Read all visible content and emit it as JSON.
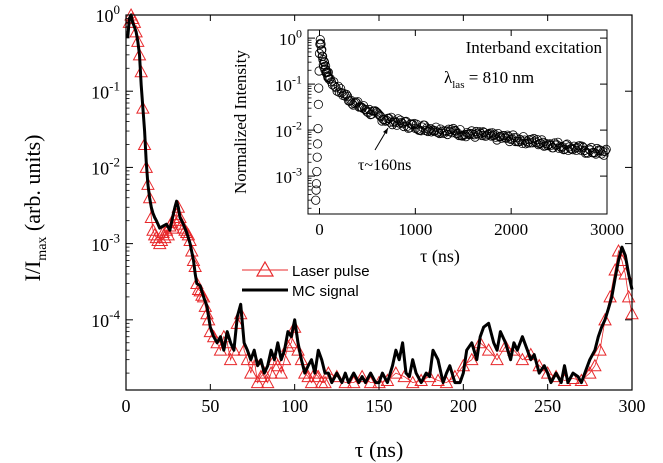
{
  "chart_data": [
    {
      "id": "main",
      "type": "line",
      "xlabel": "τ (ns)",
      "ylabel_main": "I/I",
      "ylabel_sub": "max",
      "ylabel_tail": " (arb. units)",
      "xlim": [
        0,
        300
      ],
      "ylim": [
        1.2e-05,
        1
      ],
      "y_scale": "log",
      "x_ticks": [
        0,
        50,
        100,
        150,
        200,
        250,
        300
      ],
      "x_tick_labels": [
        "0",
        "50",
        "100",
        "150",
        "200",
        "250",
        "300"
      ],
      "y_ticks": [
        1,
        0.1,
        0.01,
        0.001,
        0.0001
      ],
      "y_tick_labels": [
        {
          "base": "10",
          "exp": "0"
        },
        {
          "base": "10",
          "exp": "-1"
        },
        {
          "base": "10",
          "exp": "-2"
        },
        {
          "base": "10",
          "exp": "-3"
        },
        {
          "base": "10",
          "exp": "-4"
        }
      ],
      "legend_position": "center-left",
      "series": [
        {
          "name": "Laser pulse",
          "color": "#e8282b",
          "marker": "triangle-open",
          "x": [
            2,
            3,
            4,
            5,
            6,
            7,
            8,
            9,
            10,
            11,
            12,
            13,
            14,
            15,
            16,
            17,
            18,
            19,
            20,
            21,
            22,
            23,
            24,
            25,
            26,
            27,
            28,
            29,
            30,
            31,
            32,
            33,
            34,
            35,
            36,
            37,
            38,
            39,
            40,
            41,
            42,
            43,
            44,
            45,
            46,
            47,
            48,
            49,
            50,
            52,
            54,
            56,
            58,
            60,
            62,
            64,
            66,
            68,
            70,
            72,
            74,
            76,
            78,
            80,
            82,
            84,
            86,
            88,
            90,
            92,
            94,
            96,
            98,
            100,
            102,
            104,
            106,
            108,
            110,
            112,
            114,
            116,
            118,
            120,
            125,
            130,
            135,
            140,
            145,
            150,
            155,
            160,
            165,
            170,
            175,
            180,
            185,
            190,
            195,
            200,
            205,
            210,
            215,
            220,
            225,
            230,
            235,
            240,
            245,
            250,
            255,
            260,
            265,
            270,
            275,
            278,
            281,
            284,
            287,
            290,
            292,
            294,
            296,
            298,
            300
          ],
          "y": [
            0.8,
            1.0,
            0.9,
            0.8,
            0.6,
            0.45,
            0.3,
            0.18,
            0.06,
            0.02,
            0.01,
            0.006,
            0.004,
            0.0022,
            0.0015,
            0.0013,
            0.0012,
            0.0011,
            0.001,
            0.0011,
            0.0014,
            0.0012,
            0.0015,
            0.0013,
            0.0017,
            0.0019,
            0.0016,
            0.002,
            0.0024,
            0.003,
            0.0022,
            0.0018,
            0.0016,
            0.0015,
            0.0014,
            0.0013,
            0.0011,
            0.0008,
            0.0006,
            0.0005,
            0.0003,
            0.00025,
            0.00024,
            0.00021,
            0.0002,
            0.00015,
            0.00012,
            0.0001,
            7e-05,
            6e-05,
            5e-05,
            4e-05,
            6e-05,
            5e-05,
            3e-05,
            4e-05,
            9e-05,
            0.00012,
            4e-05,
            3e-05,
            2e-05,
            3e-05,
            1.5e-05,
            1.8e-05,
            2e-05,
            1.5e-05,
            2e-05,
            3e-05,
            2.5e-05,
            2e-05,
            3e-05,
            4.5e-05,
            5e-05,
            8e-05,
            4e-05,
            3e-05,
            2e-05,
            1.8e-05,
            1.5e-05,
            2e-05,
            1.8e-05,
            1.5e-05,
            1.5e-05,
            2e-05,
            1.8e-05,
            1.5e-05,
            1.5e-05,
            1.8e-05,
            1.5e-05,
            1.5e-05,
            1.6e-05,
            2e-05,
            1.8e-05,
            1.5e-05,
            1.6e-05,
            1.8e-05,
            1.6e-05,
            1.5e-05,
            1.8e-05,
            2.5e-05,
            3e-05,
            5e-05,
            4e-05,
            3e-05,
            4.5e-05,
            4e-05,
            3e-05,
            3.5e-05,
            2.5e-05,
            2e-05,
            1.8e-05,
            1.6e-05,
            1.7e-05,
            1.6e-05,
            2e-05,
            2.5e-05,
            4e-05,
            0.0001,
            0.0002,
            0.00045,
            0.0008,
            0.0006,
            0.0004,
            0.0002,
            0.00012
          ]
        },
        {
          "name": "MC signal",
          "color": "#000000",
          "marker": "none",
          "x": [
            1,
            2,
            3,
            4,
            5,
            6,
            7,
            8,
            9,
            10,
            11,
            12,
            13,
            14,
            15,
            16,
            17,
            18,
            19,
            20,
            22,
            24,
            26,
            28,
            29,
            30,
            31,
            32,
            33,
            34,
            36,
            38,
            40,
            41,
            42,
            44,
            46,
            48,
            50,
            52,
            54,
            56,
            58,
            60,
            62,
            64,
            66,
            68,
            70,
            72,
            74,
            76,
            78,
            80,
            82,
            84,
            86,
            88,
            90,
            92,
            94,
            96,
            98,
            100,
            102,
            104,
            106,
            108,
            110,
            112,
            114,
            116,
            118,
            120,
            122,
            125,
            128,
            130,
            132,
            135,
            138,
            140,
            142,
            145,
            148,
            150,
            152,
            155,
            158,
            160,
            162,
            164,
            166,
            168,
            170,
            172,
            175,
            178,
            180,
            182,
            185,
            188,
            190,
            192,
            195,
            198,
            200,
            202,
            205,
            208,
            210,
            212,
            215,
            218,
            220,
            222,
            225,
            228,
            230,
            232,
            235,
            238,
            240,
            242,
            245,
            248,
            250,
            252,
            255,
            258,
            260,
            262,
            265,
            268,
            270,
            272,
            275,
            278,
            280,
            282,
            284,
            286,
            288,
            290,
            292,
            294,
            296,
            298,
            300
          ],
          "y": [
            0.5,
            0.9,
            1.0,
            0.8,
            0.7,
            0.6,
            0.45,
            0.3,
            0.12,
            0.06,
            0.03,
            0.012,
            0.006,
            0.004,
            0.003,
            0.0025,
            0.0022,
            0.002,
            0.0018,
            0.0016,
            0.0017,
            0.0018,
            0.0015,
            0.0024,
            0.003,
            0.0036,
            0.003,
            0.0022,
            0.002,
            0.0018,
            0.0014,
            0.001,
            0.0006,
            0.0004,
            0.0003,
            0.00028,
            0.0002,
            0.00015,
            8e-05,
            6e-05,
            5e-05,
            6e-05,
            4e-05,
            7e-05,
            5e-05,
            4e-05,
            0.00011,
            0.00016,
            5e-05,
            4e-05,
            3e-05,
            4e-05,
            2.5e-05,
            3e-05,
            2e-05,
            2.5e-05,
            4e-05,
            3e-05,
            5e-05,
            3e-05,
            4e-05,
            7e-05,
            6e-05,
            0.0001,
            5e-05,
            3e-05,
            2e-05,
            2.5e-05,
            3e-05,
            2e-05,
            4e-05,
            3e-05,
            2e-05,
            2e-05,
            1.5e-05,
            2e-05,
            1.5e-05,
            2e-05,
            1.5e-05,
            2e-05,
            1.5e-05,
            1.8e-05,
            1.5e-05,
            2e-05,
            1.5e-05,
            1.5e-05,
            2e-05,
            1.5e-05,
            2.5e-05,
            4e-05,
            3e-05,
            5e-05,
            2e-05,
            1.8e-05,
            3e-05,
            2e-05,
            1.5e-05,
            2e-05,
            1.8e-05,
            4e-05,
            3e-05,
            1.5e-05,
            2e-05,
            2.5e-05,
            1.5e-05,
            1.5e-05,
            2e-05,
            4e-05,
            5e-05,
            3e-05,
            6e-05,
            8e-05,
            9e-05,
            5e-05,
            4e-05,
            7e-05,
            5e-05,
            3e-05,
            5e-05,
            4e-05,
            6e-05,
            4e-05,
            3e-05,
            3.5e-05,
            2e-05,
            2.5e-05,
            2e-05,
            1.5e-05,
            2e-05,
            1.5e-05,
            2.5e-05,
            1.5e-05,
            2e-05,
            1.8e-05,
            1.5e-05,
            2e-05,
            3e-05,
            4e-05,
            6e-05,
            8e-05,
            0.0001,
            0.00014,
            0.0002,
            0.00035,
            0.0006,
            0.0009,
            0.0007,
            0.0004,
            0.00025
          ]
        }
      ]
    },
    {
      "id": "inset",
      "type": "scatter",
      "xlabel": "τ (ns)",
      "ylabel": "Normalized Intensity",
      "xlim": [
        -120,
        3000
      ],
      "ylim": [
        0.00015,
        1.5
      ],
      "y_scale": "log",
      "x_ticks": [
        0,
        1000,
        2000,
        3000
      ],
      "x_tick_labels": [
        "0",
        "1000",
        "2000",
        "3000"
      ],
      "y_ticks": [
        1,
        0.1,
        0.01,
        0.001
      ],
      "y_tick_labels": [
        {
          "base": "10",
          "exp": "0"
        },
        {
          "base": "10",
          "exp": "-1"
        },
        {
          "base": "10",
          "exp": "-2"
        },
        {
          "base": "10",
          "exp": "-3"
        }
      ],
      "annotations": {
        "title_line1": "Interband excitation",
        "lambda_symbol": "λ",
        "lambda_sub": "las",
        "lambda_value": " = 810 nm",
        "tau_label": "τ~160ns"
      },
      "series": [
        {
          "marker": "circle-open",
          "color": "#000000",
          "curve": [
            [
              -40,
              0.0003
            ],
            [
              -30,
              0.001
            ],
            [
              -20,
              0.005
            ],
            [
              -10,
              0.05
            ],
            [
              0,
              0.5
            ],
            [
              10,
              1.0
            ],
            [
              20,
              0.6
            ],
            [
              40,
              0.3
            ],
            [
              60,
              0.22
            ],
            [
              80,
              0.17
            ],
            [
              100,
              0.14
            ],
            [
              150,
              0.1
            ],
            [
              200,
              0.075
            ],
            [
              300,
              0.05
            ],
            [
              400,
              0.035
            ],
            [
              500,
              0.027
            ],
            [
              600,
              0.021
            ],
            [
              700,
              0.017
            ],
            [
              800,
              0.015
            ],
            [
              1000,
              0.012
            ],
            [
              1200,
              0.0105
            ],
            [
              1400,
              0.0092
            ],
            [
              1600,
              0.0082
            ],
            [
              1800,
              0.0073
            ],
            [
              2000,
              0.0066
            ],
            [
              2200,
              0.0058
            ],
            [
              2400,
              0.005
            ],
            [
              2600,
              0.0043
            ],
            [
              2800,
              0.0036
            ],
            [
              3000,
              0.0032
            ]
          ]
        }
      ]
    }
  ]
}
